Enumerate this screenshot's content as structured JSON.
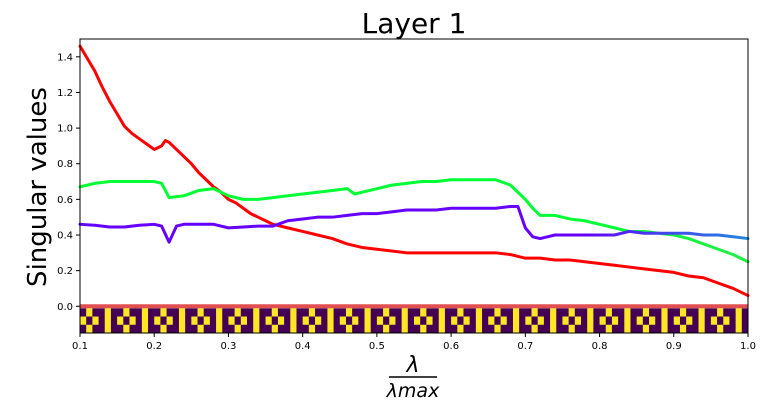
{
  "chart_data": {
    "type": "line",
    "title": "Layer 1",
    "ylabel": "Singular values",
    "xlabel_numerator": "λ",
    "xlabel_denominator": "λmax",
    "xlim": [
      0.1,
      1.0
    ],
    "ylim": [
      -0.15,
      1.5
    ],
    "x_ticks": [
      "0.1",
      "0.2",
      "0.3",
      "0.4",
      "0.5",
      "0.6",
      "0.7",
      "0.8",
      "0.9",
      "1.0"
    ],
    "x_tick_values": [
      0.1,
      0.2,
      0.3,
      0.4,
      0.5,
      0.6,
      0.7,
      0.8,
      0.9,
      1.0
    ],
    "y_ticks": [
      "0.0",
      "0.2",
      "0.4",
      "0.6",
      "0.8",
      "1.0",
      "1.2",
      "1.4"
    ],
    "y_tick_values": [
      0.0,
      0.2,
      0.4,
      0.6,
      0.8,
      1.0,
      1.2,
      1.4
    ],
    "grid": false,
    "legend": "none",
    "zero_line_color": "#e05050",
    "series": [
      {
        "color": "#ff0000",
        "color_end": "#ff0000",
        "points": [
          [
            0.1,
            1.46
          ],
          [
            0.11,
            1.39
          ],
          [
            0.12,
            1.32
          ],
          [
            0.13,
            1.23
          ],
          [
            0.14,
            1.15
          ],
          [
            0.15,
            1.08
          ],
          [
            0.16,
            1.01
          ],
          [
            0.17,
            0.97
          ],
          [
            0.18,
            0.94
          ],
          [
            0.19,
            0.91
          ],
          [
            0.2,
            0.88
          ],
          [
            0.21,
            0.9
          ],
          [
            0.215,
            0.93
          ],
          [
            0.22,
            0.92
          ],
          [
            0.23,
            0.88
          ],
          [
            0.24,
            0.84
          ],
          [
            0.25,
            0.8
          ],
          [
            0.26,
            0.75
          ],
          [
            0.27,
            0.71
          ],
          [
            0.28,
            0.67
          ],
          [
            0.29,
            0.64
          ],
          [
            0.3,
            0.6
          ],
          [
            0.31,
            0.58
          ],
          [
            0.32,
            0.55
          ],
          [
            0.33,
            0.52
          ],
          [
            0.34,
            0.5
          ],
          [
            0.35,
            0.48
          ],
          [
            0.36,
            0.46
          ],
          [
            0.38,
            0.44
          ],
          [
            0.4,
            0.42
          ],
          [
            0.42,
            0.4
          ],
          [
            0.44,
            0.38
          ],
          [
            0.46,
            0.35
          ],
          [
            0.48,
            0.33
          ],
          [
            0.5,
            0.32
          ],
          [
            0.52,
            0.31
          ],
          [
            0.54,
            0.3
          ],
          [
            0.56,
            0.3
          ],
          [
            0.58,
            0.3
          ],
          [
            0.6,
            0.3
          ],
          [
            0.62,
            0.3
          ],
          [
            0.64,
            0.3
          ],
          [
            0.66,
            0.3
          ],
          [
            0.68,
            0.29
          ],
          [
            0.7,
            0.27
          ],
          [
            0.72,
            0.27
          ],
          [
            0.74,
            0.26
          ],
          [
            0.76,
            0.26
          ],
          [
            0.78,
            0.25
          ],
          [
            0.8,
            0.24
          ],
          [
            0.82,
            0.23
          ],
          [
            0.84,
            0.22
          ],
          [
            0.86,
            0.21
          ],
          [
            0.88,
            0.2
          ],
          [
            0.9,
            0.19
          ],
          [
            0.92,
            0.17
          ],
          [
            0.94,
            0.16
          ],
          [
            0.96,
            0.13
          ],
          [
            0.98,
            0.1
          ],
          [
            1.0,
            0.06
          ]
        ]
      },
      {
        "color": "#00ff33",
        "color_end": "#22ee44",
        "points": [
          [
            0.1,
            0.67
          ],
          [
            0.12,
            0.69
          ],
          [
            0.14,
            0.7
          ],
          [
            0.16,
            0.7
          ],
          [
            0.18,
            0.7
          ],
          [
            0.2,
            0.7
          ],
          [
            0.21,
            0.69
          ],
          [
            0.22,
            0.61
          ],
          [
            0.24,
            0.62
          ],
          [
            0.26,
            0.65
          ],
          [
            0.28,
            0.66
          ],
          [
            0.3,
            0.62
          ],
          [
            0.32,
            0.6
          ],
          [
            0.34,
            0.6
          ],
          [
            0.36,
            0.61
          ],
          [
            0.38,
            0.62
          ],
          [
            0.4,
            0.63
          ],
          [
            0.42,
            0.64
          ],
          [
            0.44,
            0.65
          ],
          [
            0.46,
            0.66
          ],
          [
            0.47,
            0.63
          ],
          [
            0.5,
            0.66
          ],
          [
            0.52,
            0.68
          ],
          [
            0.54,
            0.69
          ],
          [
            0.56,
            0.7
          ],
          [
            0.58,
            0.7
          ],
          [
            0.6,
            0.71
          ],
          [
            0.62,
            0.71
          ],
          [
            0.64,
            0.71
          ],
          [
            0.66,
            0.71
          ],
          [
            0.68,
            0.68
          ],
          [
            0.69,
            0.64
          ],
          [
            0.7,
            0.6
          ],
          [
            0.71,
            0.55
          ],
          [
            0.72,
            0.51
          ],
          [
            0.74,
            0.51
          ],
          [
            0.76,
            0.49
          ],
          [
            0.78,
            0.48
          ],
          [
            0.8,
            0.46
          ],
          [
            0.82,
            0.44
          ],
          [
            0.84,
            0.42
          ],
          [
            0.86,
            0.42
          ],
          [
            0.88,
            0.41
          ],
          [
            0.9,
            0.4
          ],
          [
            0.92,
            0.38
          ],
          [
            0.94,
            0.35
          ],
          [
            0.96,
            0.32
          ],
          [
            0.98,
            0.29
          ],
          [
            1.0,
            0.25
          ]
        ]
      },
      {
        "color": "#6600ff",
        "color_end": "#2288dd",
        "points": [
          [
            0.1,
            0.46
          ],
          [
            0.12,
            0.455
          ],
          [
            0.14,
            0.445
          ],
          [
            0.16,
            0.445
          ],
          [
            0.18,
            0.455
          ],
          [
            0.2,
            0.46
          ],
          [
            0.21,
            0.45
          ],
          [
            0.22,
            0.36
          ],
          [
            0.23,
            0.45
          ],
          [
            0.24,
            0.46
          ],
          [
            0.26,
            0.46
          ],
          [
            0.28,
            0.46
          ],
          [
            0.3,
            0.44
          ],
          [
            0.32,
            0.445
          ],
          [
            0.34,
            0.45
          ],
          [
            0.36,
            0.45
          ],
          [
            0.38,
            0.48
          ],
          [
            0.4,
            0.49
          ],
          [
            0.42,
            0.5
          ],
          [
            0.44,
            0.5
          ],
          [
            0.46,
            0.51
          ],
          [
            0.48,
            0.52
          ],
          [
            0.5,
            0.52
          ],
          [
            0.52,
            0.53
          ],
          [
            0.54,
            0.54
          ],
          [
            0.56,
            0.54
          ],
          [
            0.58,
            0.54
          ],
          [
            0.6,
            0.55
          ],
          [
            0.62,
            0.55
          ],
          [
            0.64,
            0.55
          ],
          [
            0.66,
            0.55
          ],
          [
            0.68,
            0.56
          ],
          [
            0.69,
            0.56
          ],
          [
            0.7,
            0.44
          ],
          [
            0.71,
            0.39
          ],
          [
            0.72,
            0.38
          ],
          [
            0.74,
            0.4
          ],
          [
            0.76,
            0.4
          ],
          [
            0.78,
            0.4
          ],
          [
            0.8,
            0.4
          ],
          [
            0.82,
            0.4
          ],
          [
            0.84,
            0.42
          ],
          [
            0.86,
            0.41
          ],
          [
            0.88,
            0.41
          ],
          [
            0.9,
            0.41
          ],
          [
            0.92,
            0.41
          ],
          [
            0.94,
            0.4
          ],
          [
            0.96,
            0.4
          ],
          [
            0.98,
            0.39
          ],
          [
            1.0,
            0.38
          ]
        ]
      }
    ],
    "heatmap_strip": {
      "colormap": [
        "#440154",
        "#3b528b",
        "#21918c",
        "#27c775",
        "#fde725"
      ],
      "rows": [
        [
          0.0,
          4,
          0.0,
          0.0,
          4,
          0.0,
          0.0,
          4,
          0.0,
          0.0,
          4,
          0.0,
          0.0,
          4,
          0.0,
          0.0,
          4,
          0.0,
          0.0,
          4,
          0.0,
          0.0,
          4,
          0.0,
          0.0,
          4,
          0.0,
          0.0,
          4,
          0.0,
          0.0,
          4,
          0.0,
          0.0,
          4,
          0.0,
          0.0,
          4,
          0.0,
          0.0,
          4,
          0.0,
          0.0,
          4,
          0.0,
          0.0,
          4,
          0.0,
          0.0,
          4,
          0.0,
          0.0,
          4,
          0.0,
          0.0,
          4,
          0.0,
          0.0,
          4,
          0.0,
          0.0,
          4,
          0.0,
          0.0,
          4,
          0.0,
          0.0,
          4,
          0.0,
          0.0,
          4,
          0.0,
          0.0,
          4,
          0.0,
          0.0,
          4,
          0.0,
          0.0,
          4,
          0.0,
          0.0,
          4,
          0.0,
          0.0,
          4,
          0.0,
          0.0,
          4,
          0.0,
          0.0,
          4,
          0.0,
          0.0,
          4,
          0.0,
          0.0,
          4,
          0.0,
          0.0,
          4,
          0.0,
          0.0,
          4,
          0.0,
          0.0,
          4,
          0.0
        ],
        [
          4,
          0.0,
          4,
          0.0,
          4,
          0.0,
          4,
          0.0,
          4,
          0.0,
          4,
          0.0,
          4,
          0.0,
          4,
          0.0,
          4,
          0.0,
          4,
          0.0,
          4,
          0.0,
          4,
          0.0,
          4,
          0.0,
          4,
          0.0,
          4,
          0.0,
          4,
          0.0,
          4,
          0.0,
          4,
          0.0,
          4,
          0.0,
          4,
          0.0,
          4,
          0.0,
          4,
          0.0,
          4,
          0.0,
          4,
          0.0,
          4,
          0.0,
          4,
          0.0,
          4,
          0.0,
          4,
          0.0,
          4,
          0.0,
          4,
          0.0,
          4,
          0.0,
          4,
          0.0,
          4,
          0.0,
          4,
          0.0,
          4,
          0.0,
          4,
          0.0,
          4,
          0.0,
          4,
          0.0,
          4,
          0.0,
          4,
          0.0,
          4,
          0.0,
          4,
          0.0,
          4,
          0.0,
          4,
          0.0,
          4,
          0.0,
          4,
          0.0,
          4,
          0.0,
          4,
          0.0,
          4,
          0.0,
          4,
          0.0,
          4,
          0.0,
          4,
          0.0,
          4,
          0.0,
          4,
          0.0
        ],
        [
          0.0,
          4,
          0.0,
          0.0,
          4,
          0.0,
          0.0,
          4,
          0.0,
          0.0,
          4,
          0.0,
          0.0,
          4,
          0.0,
          0.0,
          4,
          0.0,
          0.0,
          4,
          0.0,
          0.0,
          4,
          0.0,
          0.0,
          4,
          0.0,
          0.0,
          4,
          0.0,
          0.0,
          4,
          0.0,
          0.0,
          4,
          0.0,
          0.0,
          4,
          0.0,
          0.0,
          4,
          0.0,
          0.0,
          4,
          0.0,
          0.0,
          4,
          0.0,
          0.0,
          4,
          0.0,
          0.0,
          4,
          0.0,
          0.0,
          4,
          0.0,
          0.0,
          4,
          0.0,
          0.0,
          4,
          0.0,
          0.0,
          4,
          0.0,
          0.0,
          4,
          0.0,
          0.0,
          4,
          0.0,
          0.0,
          4,
          0.0,
          0.0,
          4,
          0.0,
          0.0,
          4,
          0.0,
          0.0,
          4,
          0.0,
          0.0,
          4,
          0.0,
          0.0,
          4,
          0.0,
          0.0,
          4,
          0.0,
          0.0,
          4,
          0.0,
          0.0,
          4,
          0.0,
          0.0,
          4,
          0.0,
          0.0,
          4,
          0.0,
          0.0,
          4,
          0.0
        ]
      ]
    }
  }
}
